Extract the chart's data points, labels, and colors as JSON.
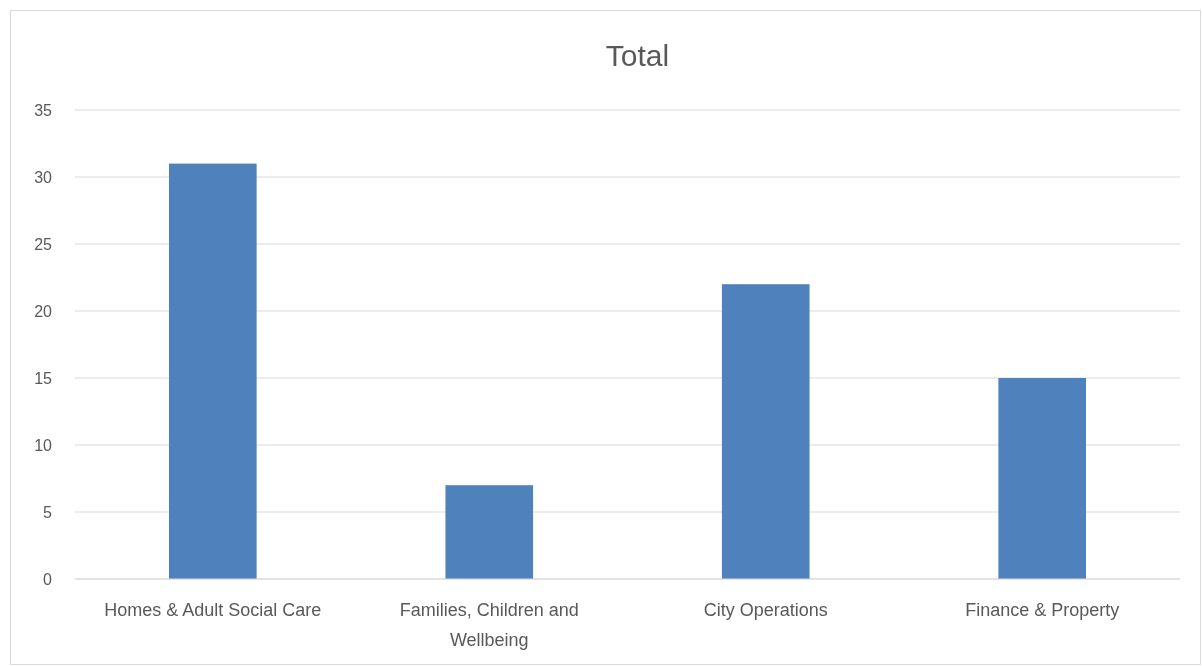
{
  "chart_data": {
    "type": "bar",
    "title": "Total",
    "categories": [
      "Homes & Adult Social Care",
      "Families, Children and Wellbeing",
      "City Operations",
      "Finance & Property"
    ],
    "values": [
      31,
      7,
      22,
      15
    ],
    "color": "#4f81bd",
    "ylim": [
      0,
      35
    ],
    "yticks": [
      0,
      5,
      10,
      15,
      20,
      25,
      30,
      35
    ],
    "grid": "y"
  }
}
